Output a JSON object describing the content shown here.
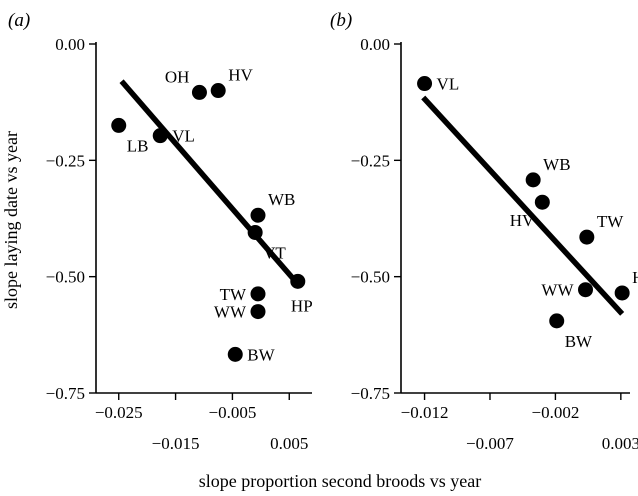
{
  "xlabel": "slope proportion second broods vs year",
  "ylabel": "slope laying date vs year",
  "chart_data": [
    {
      "type": "scatter",
      "panel_label": "(a)",
      "xlim": [
        -0.029,
        0.009
      ],
      "ylim": [
        -0.75,
        0.0
      ],
      "x_ticks": [
        {
          "value": -0.025,
          "label": "−0.025",
          "row": 1
        },
        {
          "value": -0.015,
          "label": "−0.015",
          "row": 2
        },
        {
          "value": -0.005,
          "label": "−0.005",
          "row": 1
        },
        {
          "value": 0.005,
          "label": "0.005",
          "row": 2
        }
      ],
      "y_ticks": [
        {
          "value": 0.0,
          "label": "0.00"
        },
        {
          "value": -0.25,
          "label": "−0.25"
        },
        {
          "value": -0.5,
          "label": "−0.50"
        },
        {
          "value": -0.75,
          "label": "−0.75"
        }
      ],
      "points": [
        {
          "label": "LB",
          "x": -0.025,
          "y": -0.175,
          "label_pos": "below-right"
        },
        {
          "label": "VL",
          "x": -0.0177,
          "y": -0.197,
          "label_pos": "right"
        },
        {
          "label": "OH",
          "x": -0.0108,
          "y": -0.104,
          "label_pos": "above-left"
        },
        {
          "label": "HV",
          "x": -0.0075,
          "y": -0.1,
          "label_pos": "above-right"
        },
        {
          "label": "WB",
          "x": -0.0005,
          "y": -0.368,
          "label_pos": "above-right"
        },
        {
          "label": "VT",
          "x": -0.001,
          "y": -0.405,
          "label_pos": "below-right"
        },
        {
          "label": "HP",
          "x": 0.0065,
          "y": -0.51,
          "label_pos": "below"
        },
        {
          "label": "TW",
          "x": -0.0005,
          "y": -0.537,
          "label_pos": "left"
        },
        {
          "label": "WW",
          "x": -0.0005,
          "y": -0.575,
          "label_pos": "left"
        },
        {
          "label": "BW",
          "x": -0.0045,
          "y": -0.667,
          "label_pos": "right"
        }
      ],
      "fit_line": {
        "x": [
          -0.0245,
          0.0068
        ],
        "y": [
          -0.08,
          -0.52
        ]
      }
    },
    {
      "type": "scatter",
      "panel_label": "(b)",
      "xlim": [
        -0.0138,
        0.0037
      ],
      "ylim": [
        -0.75,
        0.0
      ],
      "x_ticks": [
        {
          "value": -0.012,
          "label": "−0.012",
          "row": 1
        },
        {
          "value": -0.007,
          "label": "−0.007",
          "row": 2
        },
        {
          "value": -0.002,
          "label": "−0.002",
          "row": 1
        },
        {
          "value": 0.003,
          "label": "0.003",
          "row": 2
        }
      ],
      "y_ticks": [
        {
          "value": 0.0,
          "label": "0.00"
        },
        {
          "value": -0.25,
          "label": "−0.25"
        },
        {
          "value": -0.5,
          "label": "−0.50"
        },
        {
          "value": -0.75,
          "label": "−0.75"
        }
      ],
      "points": [
        {
          "label": "VL",
          "x": -0.012,
          "y": -0.085,
          "label_pos": "right"
        },
        {
          "label": "WB",
          "x": -0.0037,
          "y": -0.292,
          "label_pos": "above-right"
        },
        {
          "label": "HV",
          "x": -0.003,
          "y": -0.34,
          "label_pos": "below-left"
        },
        {
          "label": "TW",
          "x": 0.0004,
          "y": -0.415,
          "label_pos": "above-right"
        },
        {
          "label": "HP",
          "x": 0.0031,
          "y": -0.535,
          "label_pos": "above-right"
        },
        {
          "label": "WW",
          "x": 0.0003,
          "y": -0.528,
          "label_pos": "left"
        },
        {
          "label": "BW",
          "x": -0.0019,
          "y": -0.595,
          "label_pos": "below-right"
        }
      ],
      "fit_line": {
        "x": [
          -0.0121,
          0.0031
        ],
        "y": [
          -0.115,
          -0.58
        ]
      }
    }
  ]
}
